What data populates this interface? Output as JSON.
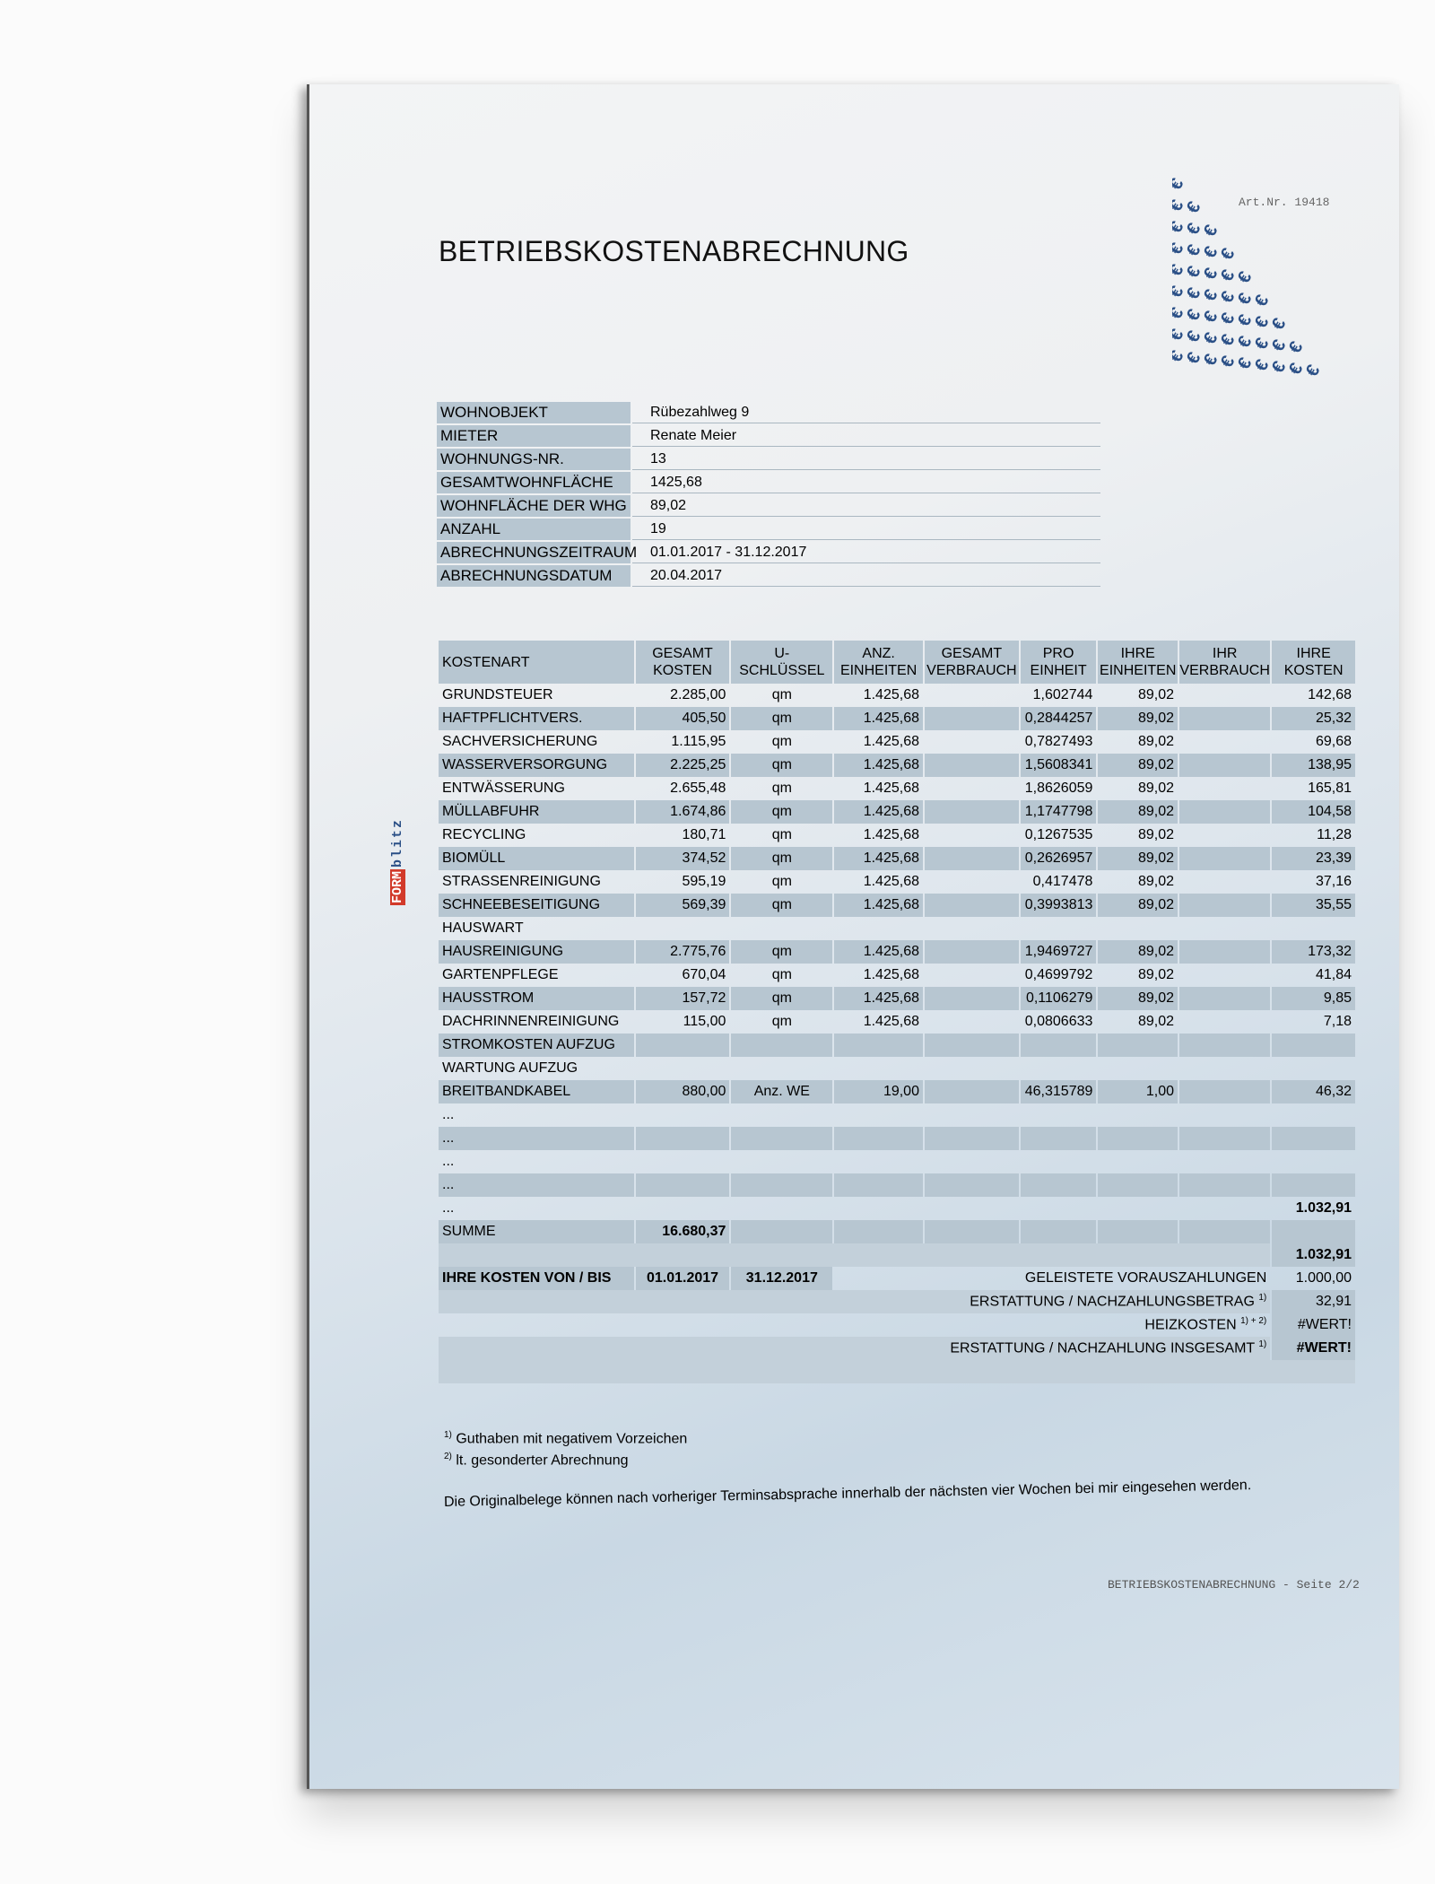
{
  "title": "BETRIEBSKOSTENABRECHNUNG",
  "art_nr": "Art.Nr. 19418",
  "logo": {
    "form": "FORM",
    "blitz": "blitz"
  },
  "info": [
    {
      "label": "WOHNOBJEKT",
      "value": "Rübezahlweg 9"
    },
    {
      "label": "MIETER",
      "value": "Renate Meier"
    },
    {
      "label": "WOHNUNGS-NR.",
      "value": "13"
    },
    {
      "label": "GESAMTWOHNFLÄCHE",
      "value": "1425,68"
    },
    {
      "label": "WOHNFLÄCHE DER WHG",
      "value": "89,02"
    },
    {
      "label": "ANZAHL WOHNEINHEITEN",
      "value": "19"
    },
    {
      "label": "ABRECHNUNGSZEITRAUM",
      "value": "01.01.2017 - 31.12.2017"
    },
    {
      "label": "ABRECHNUNGSDATUM",
      "value": "20.04.2017"
    }
  ],
  "table": {
    "headers": [
      [
        "KOSTENART",
        ""
      ],
      [
        "GESAMT",
        "KOSTEN"
      ],
      [
        "U-",
        "SCHLÜSSEL"
      ],
      [
        "ANZ.",
        "EINHEITEN"
      ],
      [
        "GESAMT",
        "VERBRAUCH"
      ],
      [
        "PRO",
        "EINHEIT"
      ],
      [
        "IHRE",
        "EINHEITEN"
      ],
      [
        "IHR",
        "VERBRAUCH"
      ],
      [
        "IHRE",
        "KOSTEN"
      ]
    ],
    "rows": [
      [
        "GRUNDSTEUER",
        "2.285,00",
        "qm",
        "1.425,68",
        "",
        "1,602744",
        "89,02",
        "",
        "142,68"
      ],
      [
        "HAFTPFLICHTVERS.",
        "405,50",
        "qm",
        "1.425,68",
        "",
        "0,2844257",
        "89,02",
        "",
        "25,32"
      ],
      [
        "SACHVERSICHERUNG",
        "1.115,95",
        "qm",
        "1.425,68",
        "",
        "0,7827493",
        "89,02",
        "",
        "69,68"
      ],
      [
        "WASSERVERSORGUNG",
        "2.225,25",
        "qm",
        "1.425,68",
        "",
        "1,5608341",
        "89,02",
        "",
        "138,95"
      ],
      [
        "ENTWÄSSERUNG",
        "2.655,48",
        "qm",
        "1.425,68",
        "",
        "1,8626059",
        "89,02",
        "",
        "165,81"
      ],
      [
        "MÜLLABFUHR",
        "1.674,86",
        "qm",
        "1.425,68",
        "",
        "1,1747798",
        "89,02",
        "",
        "104,58"
      ],
      [
        "RECYCLING",
        "180,71",
        "qm",
        "1.425,68",
        "",
        "0,1267535",
        "89,02",
        "",
        "11,28"
      ],
      [
        "BIOMÜLL",
        "374,52",
        "qm",
        "1.425,68",
        "",
        "0,2626957",
        "89,02",
        "",
        "23,39"
      ],
      [
        "STRASSENREINIGUNG",
        "595,19",
        "qm",
        "1.425,68",
        "",
        "0,417478",
        "89,02",
        "",
        "37,16"
      ],
      [
        "SCHNEEBESEITIGUNG",
        "569,39",
        "qm",
        "1.425,68",
        "",
        "0,3993813",
        "89,02",
        "",
        "35,55"
      ],
      [
        "HAUSWART",
        "",
        "",
        "",
        "",
        "",
        "",
        "",
        ""
      ],
      [
        "HAUSREINIGUNG",
        "2.775,76",
        "qm",
        "1.425,68",
        "",
        "1,9469727",
        "89,02",
        "",
        "173,32"
      ],
      [
        "GARTENPFLEGE",
        "670,04",
        "qm",
        "1.425,68",
        "",
        "0,4699792",
        "89,02",
        "",
        "41,84"
      ],
      [
        "HAUSSTROM",
        "157,72",
        "qm",
        "1.425,68",
        "",
        "0,1106279",
        "89,02",
        "",
        "9,85"
      ],
      [
        "DACHRINNENREINIGUNG",
        "115,00",
        "qm",
        "1.425,68",
        "",
        "0,0806633",
        "89,02",
        "",
        "7,18"
      ],
      [
        "STROMKOSTEN AUFZUG",
        "",
        "",
        "",
        "",
        "",
        "",
        "",
        ""
      ],
      [
        "WARTUNG AUFZUG",
        "",
        "",
        "",
        "",
        "",
        "",
        "",
        ""
      ],
      [
        "BREITBANDKABEL",
        "880,00",
        "Anz. WE",
        "19,00",
        "",
        "46,315789",
        "1,00",
        "",
        "46,32"
      ],
      [
        "...",
        "",
        "",
        "",
        "",
        "",
        "",
        "",
        ""
      ],
      [
        "...",
        "",
        "",
        "",
        "",
        "",
        "",
        "",
        ""
      ],
      [
        "...",
        "",
        "",
        "",
        "",
        "",
        "",
        "",
        ""
      ],
      [
        "...",
        "",
        "",
        "",
        "",
        "",
        "",
        "",
        ""
      ],
      [
        "...",
        "",
        "",
        "",
        "",
        "",
        "",
        "",
        "1.032,91"
      ]
    ],
    "summe_label": "SUMME",
    "summe_value": "16.680,37",
    "total": "1.032,91",
    "period_label": "IHRE KOSTEN VON / BIS",
    "period_from": "01.01.2017",
    "period_to": "31.12.2017",
    "summary": [
      {
        "label": "GELEISTETE VORAUSZAHLUNGEN",
        "sup": "",
        "value": "1.000,00"
      },
      {
        "label": "ERSTATTUNG / NACHZAHLUNGSBETRAG",
        "sup": "1)",
        "value": "32,91"
      },
      {
        "label": "HEIZKOSTEN",
        "sup": "1) + 2)",
        "value": "#WERT!"
      },
      {
        "label": "ERSTATTUNG / NACHZAHLUNG INSGESAMT",
        "sup": "1)",
        "value": "#WERT!"
      }
    ]
  },
  "footnotes": [
    {
      "mark": "1)",
      "text": "Guthaben mit negativem Vorzeichen"
    },
    {
      "mark": "2)",
      "text": "lt. gesonderter Abrechnung"
    }
  ],
  "note": "Die Originalbelege können nach vorheriger Terminsabsprache innerhalb der nächsten vier Wochen bei mir eingesehen werden.",
  "footer": "BETRIEBSKOSTENABRECHNUNG - Seite 2/2"
}
